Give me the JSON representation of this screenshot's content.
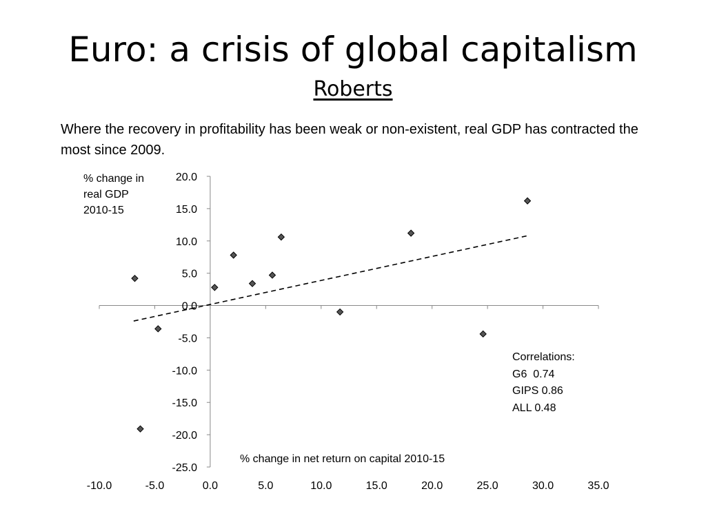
{
  "slide": {
    "title": "Euro: a crisis of global capitalism",
    "subtitle": "Roberts",
    "description": "Where the recovery in profitability has been weak or non-existent, real GDP has contracted the most since 2009."
  },
  "colors": {
    "marker_fill": "#555555",
    "marker_stroke": "#000000",
    "axis": "#888888",
    "trendline": "#000000"
  },
  "correlations": {
    "heading": "Correlations:",
    "lines": [
      "G6  0.74",
      "GIPS 0.86",
      "ALL 0.48"
    ]
  },
  "chart_data": {
    "type": "scatter",
    "xlabel": "% change in net return on capital 2010-15",
    "ylabel": "% change in\nreal GDP\n2010-15",
    "xlim": [
      -10,
      35
    ],
    "ylim": [
      -25,
      20
    ],
    "x_ticks": [
      "-10.0",
      "-5.0",
      "0.0",
      "5.0",
      "10.0",
      "15.0",
      "20.0",
      "25.0",
      "30.0",
      "35.0"
    ],
    "y_ticks": [
      "20.0",
      "15.0",
      "10.0",
      "5.0",
      "0.0",
      "-5.0",
      "-10.0",
      "-15.0",
      "-20.0",
      "-25.0"
    ],
    "grid": false,
    "points": [
      {
        "x": -6.8,
        "y": 4.2
      },
      {
        "x": -4.7,
        "y": -3.6
      },
      {
        "x": -6.3,
        "y": -19.1
      },
      {
        "x": 0.4,
        "y": 2.8
      },
      {
        "x": 2.1,
        "y": 7.8
      },
      {
        "x": 3.8,
        "y": 3.4
      },
      {
        "x": 5.6,
        "y": 4.7
      },
      {
        "x": 6.4,
        "y": 10.6
      },
      {
        "x": 11.7,
        "y": -1.0
      },
      {
        "x": 18.1,
        "y": 11.2
      },
      {
        "x": 24.6,
        "y": -4.4
      },
      {
        "x": 28.6,
        "y": 16.2
      }
    ],
    "trendline": {
      "style": "dashed",
      "x": [
        -6.9,
        28.6
      ],
      "y": [
        -2.4,
        10.8
      ]
    }
  }
}
